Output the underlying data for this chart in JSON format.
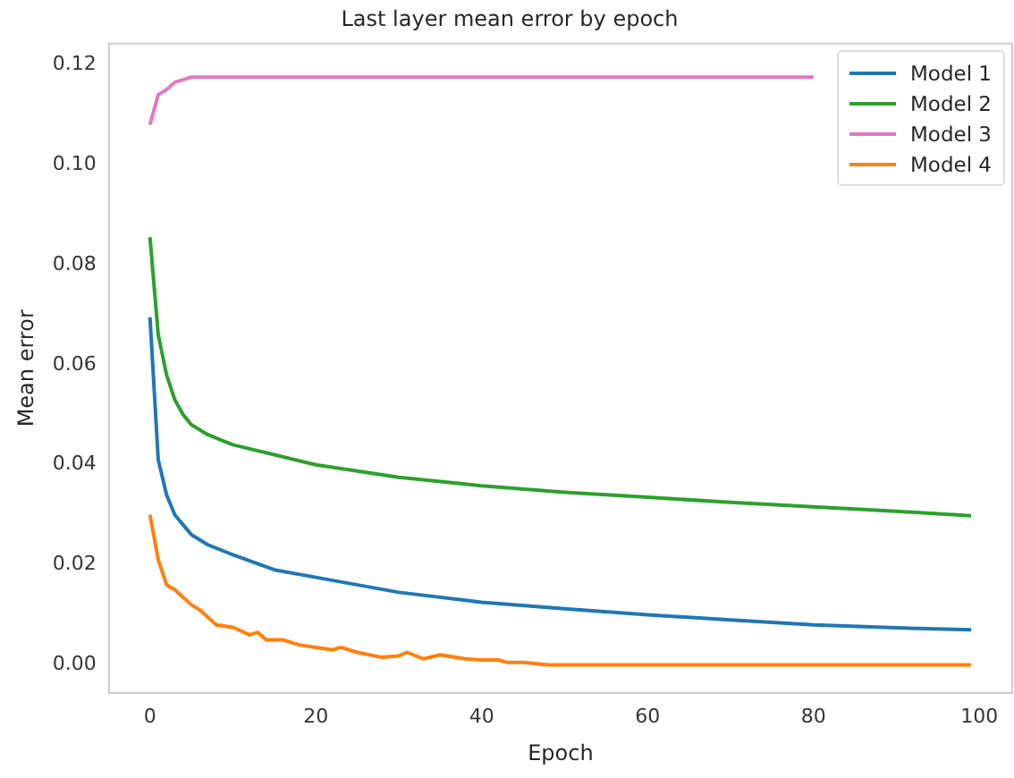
{
  "chart_data": {
    "type": "line",
    "title": "Last layer mean error by epoch",
    "xlabel": "Epoch",
    "ylabel": "Mean error",
    "xlim": [
      -4.95,
      103.95
    ],
    "xticks": [
      0,
      20,
      40,
      60,
      80,
      100
    ],
    "ylim": [
      -0.0056,
      0.1242
    ],
    "yticks": [
      {
        "value": 0,
        "label": "0.00"
      },
      {
        "value": 0.02,
        "label": "0.02"
      },
      {
        "value": 0.04,
        "label": "0.04"
      },
      {
        "value": 0.06,
        "label": "0.06"
      },
      {
        "value": 0.08,
        "label": "0.08"
      },
      {
        "value": 0.1,
        "label": "0.10"
      },
      {
        "value": 0.12,
        "label": "0.12"
      }
    ],
    "grid": false,
    "legend": "top right",
    "marker": "none",
    "line_style": "solid",
    "series": [
      {
        "name": "Model 1",
        "color": "#1f77b4",
        "x": [
          0,
          1,
          2,
          3,
          4,
          5,
          7,
          10,
          15,
          20,
          30,
          40,
          50,
          60,
          70,
          80,
          90,
          99
        ],
        "values": [
          0.0695,
          0.041,
          0.034,
          0.03,
          0.028,
          0.026,
          0.024,
          0.022,
          0.019,
          0.0175,
          0.0145,
          0.0125,
          0.0112,
          0.01,
          0.009,
          0.008,
          0.0074,
          0.007
        ]
      },
      {
        "name": "Model 2",
        "color": "#2ca02c",
        "x": [
          0,
          1,
          2,
          3,
          4,
          5,
          7,
          10,
          15,
          20,
          30,
          40,
          50,
          60,
          70,
          80,
          90,
          99
        ],
        "values": [
          0.0855,
          0.066,
          0.058,
          0.053,
          0.05,
          0.048,
          0.046,
          0.044,
          0.042,
          0.04,
          0.0375,
          0.0358,
          0.0345,
          0.0335,
          0.0325,
          0.0316,
          0.0307,
          0.0298
        ]
      },
      {
        "name": "Model 3",
        "color": "#e377c2",
        "x": [
          0,
          1,
          2,
          3,
          4,
          5,
          80
        ],
        "values": [
          0.108,
          0.114,
          0.115,
          0.1165,
          0.117,
          0.1175,
          0.1175
        ]
      },
      {
        "name": "Model 4",
        "color": "#ff7f0e",
        "x": [
          0,
          1,
          2,
          3,
          4,
          5,
          6,
          8,
          10,
          12,
          13,
          14,
          16,
          18,
          20,
          22,
          23,
          25,
          28,
          30,
          31,
          33,
          35,
          38,
          40,
          42,
          43,
          45,
          48,
          99
        ],
        "values": [
          0.03,
          0.021,
          0.016,
          0.015,
          0.0135,
          0.012,
          0.011,
          0.008,
          0.0075,
          0.006,
          0.0065,
          0.005,
          0.005,
          0.004,
          0.0035,
          0.003,
          0.0035,
          0.0025,
          0.0015,
          0.0018,
          0.0025,
          0.0012,
          0.002,
          0.0012,
          0.001,
          0.001,
          0.0005,
          0.0005,
          0,
          0
        ]
      }
    ]
  }
}
